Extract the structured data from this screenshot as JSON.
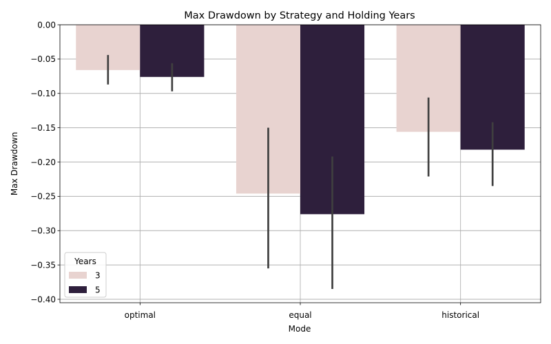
{
  "chart_data": {
    "type": "bar",
    "title": "Max Drawdown by Strategy and Holding Years",
    "xlabel": "Mode",
    "ylabel": "Max Drawdown",
    "categories": [
      "optimal",
      "equal",
      "historical"
    ],
    "ylim": [
      -0.405,
      0.0
    ],
    "yticks": [
      0.0,
      -0.05,
      -0.1,
      -0.15,
      -0.2,
      -0.25,
      -0.3,
      -0.35,
      -0.4
    ],
    "ytick_labels": [
      "0.00",
      "−0.05",
      "−0.10",
      "−0.15",
      "−0.20",
      "−0.25",
      "−0.30",
      "−0.35",
      "−0.40"
    ],
    "grid": true,
    "legend": {
      "title": "Years",
      "position": "lower-left"
    },
    "series": [
      {
        "name": "3",
        "color": "#e8d3d0",
        "values": [
          -0.066,
          -0.246,
          -0.156
        ],
        "error_low": [
          -0.087,
          -0.355,
          -0.221
        ],
        "error_high": [
          -0.044,
          -0.15,
          -0.106
        ]
      },
      {
        "name": "5",
        "color": "#2e1f3c",
        "values": [
          -0.076,
          -0.276,
          -0.182
        ],
        "error_low": [
          -0.097,
          -0.385,
          -0.235
        ],
        "error_high": [
          -0.056,
          -0.192,
          -0.142
        ]
      }
    ]
  }
}
